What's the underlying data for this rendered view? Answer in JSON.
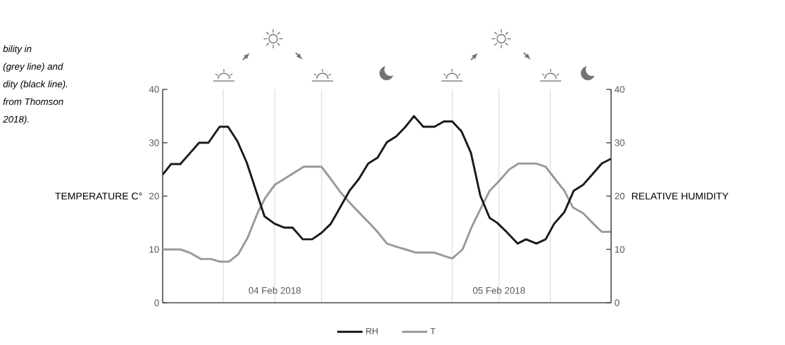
{
  "chart_data": {
    "type": "line",
    "ylabel": "TEMPERATURE C°",
    "y2label": "RELATIVE HUMIDITY",
    "annotations": [
      "bility in",
      "(grey line) and",
      "dity (black line).",
      "from Thomson",
      "2018)."
    ],
    "xlim": [
      "2018-02-04T00:00",
      "2018-02-06T00:00"
    ],
    "xticks": [
      {
        "value": "2018-02-04T06:30",
        "label": null
      },
      {
        "value": "2018-02-04T12:00",
        "label": "04 Feb 2018"
      },
      {
        "value": "2018-02-04T17:00",
        "label": null
      },
      {
        "value": "2018-02-05T07:00",
        "label": null
      },
      {
        "value": "2018-02-05T12:00",
        "label": "05 Feb 2018"
      },
      {
        "value": "2018-02-05T17:30",
        "label": null
      }
    ],
    "ylim": [
      0,
      40
    ],
    "yticks": [
      0,
      10,
      20,
      30,
      40
    ],
    "y2lim": [
      0,
      40
    ],
    "y2ticks": [
      0,
      10,
      20,
      30,
      40
    ],
    "grid": "x",
    "legend": "bottom",
    "series": [
      {
        "name": "RH",
        "color": "#1a1a1a",
        "axis": "y2",
        "x": [
          "2018-02-04T00:00",
          "2018-02-04T00:54",
          "2018-02-04T01:54",
          "2018-02-04T02:54",
          "2018-02-04T03:54",
          "2018-02-04T04:54",
          "2018-02-04T06:06",
          "2018-02-04T07:00",
          "2018-02-04T08:00",
          "2018-02-04T09:00",
          "2018-02-04T10:00",
          "2018-02-04T10:54",
          "2018-02-04T12:00",
          "2018-02-04T13:00",
          "2018-02-04T13:54",
          "2018-02-04T15:00",
          "2018-02-04T16:00",
          "2018-02-04T17:00",
          "2018-02-04T18:00",
          "2018-02-04T19:00",
          "2018-02-04T20:00",
          "2018-02-04T21:00",
          "2018-02-04T22:00",
          "2018-02-04T23:00",
          "2018-02-05T00:00",
          "2018-02-05T01:00",
          "2018-02-05T02:00",
          "2018-02-05T02:54",
          "2018-02-05T03:54",
          "2018-02-05T05:06",
          "2018-02-05T06:06",
          "2018-02-05T07:00",
          "2018-02-05T08:00",
          "2018-02-05T09:00",
          "2018-02-05T10:00",
          "2018-02-05T11:00",
          "2018-02-05T11:48",
          "2018-02-05T12:48",
          "2018-02-05T14:00",
          "2018-02-05T14:54",
          "2018-02-05T16:00",
          "2018-02-05T17:00",
          "2018-02-05T17:54",
          "2018-02-05T19:00",
          "2018-02-05T20:00",
          "2018-02-05T21:00",
          "2018-02-05T22:00",
          "2018-02-05T23:00",
          "2018-02-06T00:00"
        ],
        "values": [
          24,
          26,
          26,
          28,
          30,
          30,
          33,
          33,
          30.3,
          26.3,
          21,
          16.2,
          14.8,
          14.1,
          14.1,
          11.9,
          11.9,
          13.1,
          14.8,
          17.9,
          21,
          23.2,
          26.1,
          27.2,
          30.1,
          31.2,
          33,
          35,
          33,
          33,
          34,
          34,
          32.1,
          28.1,
          20.1,
          15.9,
          15,
          13.3,
          11.1,
          11.9,
          11.1,
          11.9,
          14.8,
          17,
          21,
          22.1,
          24.1,
          26.1,
          27
        ]
      },
      {
        "name": "T",
        "color": "#999999",
        "axis": "y",
        "x": [
          "2018-02-04T00:00",
          "2018-02-04T01:54",
          "2018-02-04T02:54",
          "2018-02-04T04:06",
          "2018-02-04T05:12",
          "2018-02-04T06:06",
          "2018-02-04T07:06",
          "2018-02-04T08:06",
          "2018-02-04T09:06",
          "2018-02-04T10:12",
          "2018-02-04T11:00",
          "2018-02-04T12:00",
          "2018-02-04T13:00",
          "2018-02-04T14:00",
          "2018-02-04T15:06",
          "2018-02-04T17:00",
          "2018-02-04T18:00",
          "2018-02-04T19:00",
          "2018-02-04T20:00",
          "2018-02-04T21:12",
          "2018-02-04T22:12",
          "2018-02-04T23:00",
          "2018-02-05T00:00",
          "2018-02-05T01:00",
          "2018-02-05T02:00",
          "2018-02-05T03:06",
          "2018-02-05T05:06",
          "2018-02-05T06:06",
          "2018-02-05T07:00",
          "2018-02-05T08:06",
          "2018-02-05T09:00",
          "2018-02-05T10:00",
          "2018-02-05T11:00",
          "2018-02-05T12:00",
          "2018-02-05T13:06",
          "2018-02-05T14:06",
          "2018-02-05T16:00",
          "2018-02-05T17:00",
          "2018-02-05T18:00",
          "2018-02-05T19:00",
          "2018-02-05T19:54",
          "2018-02-05T21:00",
          "2018-02-05T22:00",
          "2018-02-05T23:00",
          "2018-02-06T00:00"
        ],
        "values": [
          10,
          10,
          9.4,
          8.2,
          8.2,
          7.7,
          7.7,
          9.1,
          12.2,
          17,
          19.7,
          22.1,
          23.2,
          24.3,
          25.5,
          25.5,
          23.2,
          20.8,
          18.8,
          16.6,
          14.8,
          13.3,
          11.1,
          10.5,
          10,
          9.4,
          9.4,
          8.8,
          8.3,
          10,
          13.9,
          17.5,
          21,
          22.8,
          25,
          26.1,
          26.1,
          25.5,
          23.2,
          21,
          17.9,
          16.8,
          15,
          13.3,
          13.3
        ]
      }
    ]
  }
}
